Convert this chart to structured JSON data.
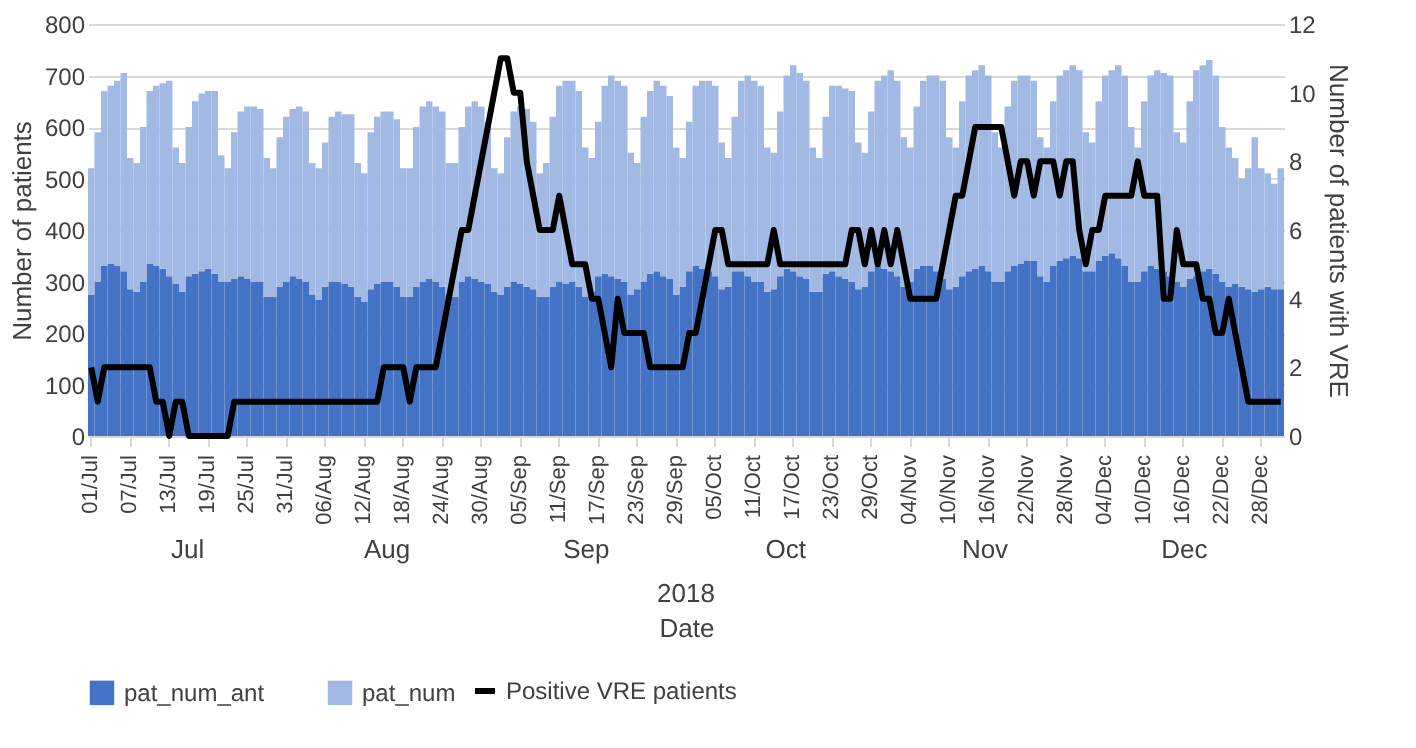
{
  "chart_data": {
    "type": "bar",
    "xlabel": "Date",
    "ylabel": "Number of patients",
    "y2label": "Number of patients with VRE",
    "categories": [
      "01/Jul",
      null,
      null,
      null,
      null,
      null,
      "07/Jul",
      null,
      null,
      null,
      null,
      null,
      "13/Jul",
      null,
      null,
      null,
      null,
      null,
      "19/Jul",
      null,
      null,
      null,
      null,
      null,
      "25/Jul",
      null,
      null,
      null,
      null,
      null,
      "31/Jul",
      null,
      null,
      null,
      null,
      null,
      "06/Aug",
      null,
      null,
      null,
      null,
      null,
      "12/Aug",
      null,
      null,
      null,
      null,
      null,
      "18/Aug",
      null,
      null,
      null,
      null,
      null,
      "24/Aug",
      null,
      null,
      null,
      null,
      null,
      "30/Aug",
      null,
      null,
      null,
      null,
      null,
      "05/Sep",
      null,
      null,
      null,
      null,
      null,
      "11/Sep",
      null,
      null,
      null,
      null,
      null,
      "17/Sep",
      null,
      null,
      null,
      null,
      null,
      "23/Sep",
      null,
      null,
      null,
      null,
      null,
      "29/Sep",
      null,
      null,
      null,
      null,
      null,
      "05/Oct",
      null,
      null,
      null,
      null,
      null,
      "11/Oct",
      null,
      null,
      null,
      null,
      null,
      "17/Oct",
      null,
      null,
      null,
      null,
      null,
      "23/Oct",
      null,
      null,
      null,
      null,
      null,
      "29/Oct",
      null,
      null,
      null,
      null,
      null,
      "04/Nov",
      null,
      null,
      null,
      null,
      null,
      "10/Nov",
      null,
      null,
      null,
      null,
      null,
      "16/Nov",
      null,
      null,
      null,
      null,
      null,
      "22/Nov",
      null,
      null,
      null,
      null,
      null,
      "28/Nov",
      null,
      null,
      null,
      null,
      null,
      "04/Dec",
      null,
      null,
      null,
      null,
      null,
      "10/Dec",
      null,
      null,
      null,
      null,
      null,
      "16/Dec",
      null,
      null,
      null,
      null,
      null,
      "22/Dec",
      null,
      null,
      null,
      null,
      null,
      "28/Dec",
      null,
      null,
      null
    ],
    "series": [
      {
        "name": "pat_num_ant",
        "color": "#4472c4",
        "values": [
          275,
          300,
          330,
          335,
          330,
          320,
          285,
          280,
          300,
          335,
          330,
          325,
          310,
          295,
          280,
          310,
          315,
          320,
          325,
          315,
          300,
          300,
          305,
          310,
          305,
          300,
          300,
          270,
          270,
          290,
          300,
          310,
          305,
          300,
          275,
          265,
          290,
          300,
          300,
          295,
          290,
          270,
          260,
          285,
          295,
          300,
          300,
          290,
          270,
          270,
          290,
          300,
          305,
          300,
          290,
          275,
          270,
          300,
          310,
          305,
          300,
          295,
          280,
          275,
          290,
          300,
          295,
          290,
          285,
          270,
          270,
          290,
          300,
          295,
          300,
          290,
          270,
          280,
          310,
          315,
          310,
          305,
          300,
          275,
          285,
          300,
          315,
          320,
          310,
          305,
          275,
          290,
          320,
          330,
          325,
          320,
          310,
          285,
          290,
          320,
          320,
          310,
          300,
          300,
          280,
          285,
          310,
          325,
          320,
          310,
          305,
          280,
          280,
          315,
          320,
          310,
          305,
          300,
          285,
          290,
          320,
          330,
          325,
          320,
          310,
          290,
          300,
          325,
          330,
          330,
          320,
          305,
          285,
          290,
          310,
          320,
          325,
          330,
          320,
          300,
          300,
          320,
          330,
          335,
          340,
          340,
          310,
          300,
          330,
          340,
          345,
          350,
          345,
          320,
          320,
          340,
          350,
          355,
          345,
          330,
          300,
          300,
          320,
          330,
          325,
          320,
          310,
          300,
          290,
          305,
          310,
          320,
          325,
          315,
          300,
          290,
          295,
          290,
          285,
          280,
          285,
          290,
          285,
          285
        ]
      },
      {
        "name": "pat_num",
        "color": "#a2b9e4",
        "values": [
          245,
          290,
          340,
          345,
          360,
          385,
          255,
          250,
          300,
          335,
          350,
          360,
          380,
          265,
          250,
          290,
          335,
          345,
          345,
          355,
          245,
          220,
          285,
          320,
          335,
          340,
          335,
          270,
          250,
          290,
          320,
          325,
          335,
          330,
          255,
          255,
          280,
          320,
          330,
          330,
          335,
          260,
          250,
          305,
          325,
          330,
          330,
          325,
          250,
          250,
          310,
          340,
          345,
          340,
          340,
          255,
          260,
          300,
          330,
          345,
          340,
          315,
          240,
          235,
          290,
          330,
          345,
          345,
          325,
          240,
          260,
          330,
          380,
          395,
          390,
          380,
          290,
          260,
          300,
          365,
          390,
          385,
          380,
          275,
          245,
          320,
          355,
          370,
          370,
          355,
          285,
          250,
          290,
          350,
          365,
          370,
          370,
          285,
          250,
          300,
          370,
          390,
          390,
          380,
          280,
          265,
          320,
          375,
          400,
          395,
          385,
          280,
          260,
          305,
          360,
          370,
          370,
          370,
          285,
          260,
          310,
          360,
          375,
          390,
          380,
          290,
          260,
          315,
          360,
          370,
          380,
          385,
          295,
          270,
          340,
          380,
          385,
          390,
          380,
          290,
          260,
          320,
          360,
          365,
          360,
          350,
          270,
          260,
          320,
          360,
          365,
          370,
          365,
          270,
          250,
          310,
          350,
          355,
          375,
          370,
          300,
          260,
          330,
          370,
          385,
          385,
          390,
          290,
          280,
          345,
          400,
          400,
          405,
          385,
          300,
          270,
          245,
          210,
          235,
          300,
          235,
          220,
          205,
          235
        ]
      },
      {
        "name": "Positive VRE patients",
        "type": "line",
        "axis": "y2",
        "color": "#000000",
        "values": [
          2,
          1,
          2,
          2,
          2,
          2,
          2,
          2,
          2,
          2,
          1,
          1,
          0,
          1,
          1,
          0,
          0,
          0,
          0,
          0,
          0,
          0,
          1,
          1,
          1,
          1,
          1,
          1,
          1,
          1,
          1,
          1,
          1,
          1,
          1,
          1,
          1,
          1,
          1,
          1,
          1,
          1,
          1,
          1,
          1,
          2,
          2,
          2,
          2,
          1,
          2,
          2,
          2,
          2,
          3,
          4,
          5,
          6,
          6,
          7,
          8,
          9,
          10,
          11,
          11,
          10,
          10,
          8,
          7,
          6,
          6,
          6,
          7,
          6,
          5,
          5,
          5,
          4,
          4,
          3,
          2,
          4,
          3,
          3,
          3,
          3,
          2,
          2,
          2,
          2,
          2,
          2,
          3,
          3,
          4,
          5,
          6,
          6,
          5,
          5,
          5,
          5,
          5,
          5,
          5,
          6,
          5,
          5,
          5,
          5,
          5,
          5,
          5,
          5,
          5,
          5,
          5,
          6,
          6,
          5,
          6,
          5,
          6,
          5,
          6,
          5,
          4,
          4,
          4,
          4,
          4,
          5,
          6,
          7,
          7,
          8,
          9,
          9,
          9,
          9,
          9,
          8,
          7,
          8,
          8,
          7,
          8,
          8,
          8,
          7,
          8,
          8,
          6,
          5,
          6,
          6,
          7,
          7,
          7,
          7,
          7,
          8,
          7,
          7,
          7,
          4,
          4,
          6,
          5,
          5,
          5,
          4,
          4,
          3,
          3,
          4,
          3,
          2,
          1,
          1,
          1,
          1,
          1,
          1
        ]
      }
    ],
    "stacked": true,
    "ylim": [
      0,
      800
    ],
    "yticks": [
      0,
      100,
      200,
      300,
      400,
      500,
      600,
      700,
      800
    ],
    "y2lim": [
      0,
      12
    ],
    "y2ticks": [
      0,
      2,
      4,
      6,
      8,
      10,
      12
    ],
    "grid": "y",
    "legend": "bottom",
    "marker": "none",
    "line_style": "solid",
    "annotations": [
      "Jul",
      "Aug",
      "Sep",
      "Oct",
      "Nov",
      "Dec",
      "2018"
    ]
  }
}
